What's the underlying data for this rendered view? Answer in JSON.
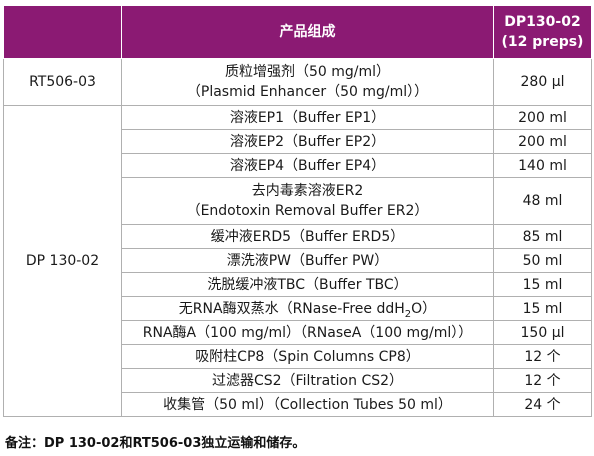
{
  "header": {
    "category": "",
    "component": "产品组成",
    "product_line1": "DP130-02",
    "product_line2": "(12 preps)"
  },
  "groups": [
    {
      "code": "RT506-03",
      "rows": [
        {
          "line1": "质粒增强剂（50 mg/ml）",
          "line2": "（Plasmid Enhancer（50 mg/ml））",
          "amount": "280 µl"
        }
      ]
    },
    {
      "code": "DP 130-02",
      "rows": [
        {
          "line1": "溶液EP1（Buffer EP1）",
          "amount": "200 ml"
        },
        {
          "line1": "溶液EP2（Buffer EP2）",
          "amount": "200 ml"
        },
        {
          "line1": "溶液EP4（Buffer EP4）",
          "amount": "140 ml"
        },
        {
          "line1": "去内毒素溶液ER2",
          "line2": "（Endotoxin Removal Buffer ER2）",
          "amount": "48 ml"
        },
        {
          "line1": "缓冲液ERD5（Buffer ERD5）",
          "amount": "85 ml"
        },
        {
          "line1": "漂洗液PW（Buffer PW）",
          "amount": "50 ml"
        },
        {
          "line1": "洗脱缓冲液TBC（Buffer TBC）",
          "amount": "15 ml"
        },
        {
          "line1_a": "无RNA酶双蒸水（RNase-Free ddH",
          "line1_sub": "2",
          "line1_b": "O）",
          "amount": "15 ml"
        },
        {
          "line1": "RNA酶A（100 mg/ml）（RNaseA（100 mg/ml））",
          "amount": "150 µl"
        },
        {
          "line1": "吸附柱CP8（Spin Columns CP8）",
          "amount": "12 个"
        },
        {
          "line1": "过滤器CS2（Filtration CS2）",
          "amount": "12 个"
        },
        {
          "line1": "收集管（50 ml）（Collection Tubes 50 ml）",
          "amount": "24 个"
        }
      ]
    }
  ],
  "note": "备注：DP 130-02和RT506-03独立运输和储存。",
  "colors": {
    "header_bg": "#8b1a73",
    "header_text": "#ffffff",
    "border": "#b0b0b0"
  }
}
